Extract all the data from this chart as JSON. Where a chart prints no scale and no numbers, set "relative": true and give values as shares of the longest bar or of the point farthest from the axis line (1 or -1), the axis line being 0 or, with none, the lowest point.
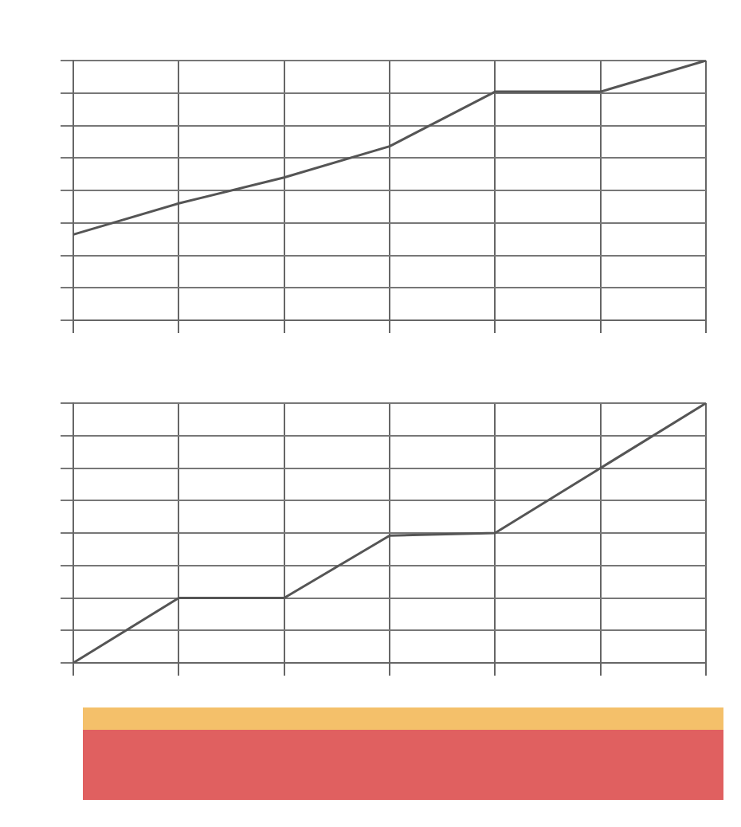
{
  "chart_data": [
    {
      "type": "line",
      "relative": true,
      "categories": [
        null,
        null,
        null,
        null,
        null,
        null,
        null
      ],
      "grid": true,
      "series": [
        {
          "color": "#555555",
          "values": [
            0.33,
            0.45,
            0.55,
            0.67,
            0.88,
            0.88,
            1
          ]
        }
      ]
    },
    {
      "type": "line",
      "relative": true,
      "categories": [
        null,
        null,
        null,
        null,
        null,
        null,
        null
      ],
      "grid": true,
      "series": [
        {
          "color": "#555555",
          "values": [
            0,
            0.25,
            0.25,
            0.49,
            0.5,
            0.75,
            1
          ]
        }
      ]
    }
  ]
}
